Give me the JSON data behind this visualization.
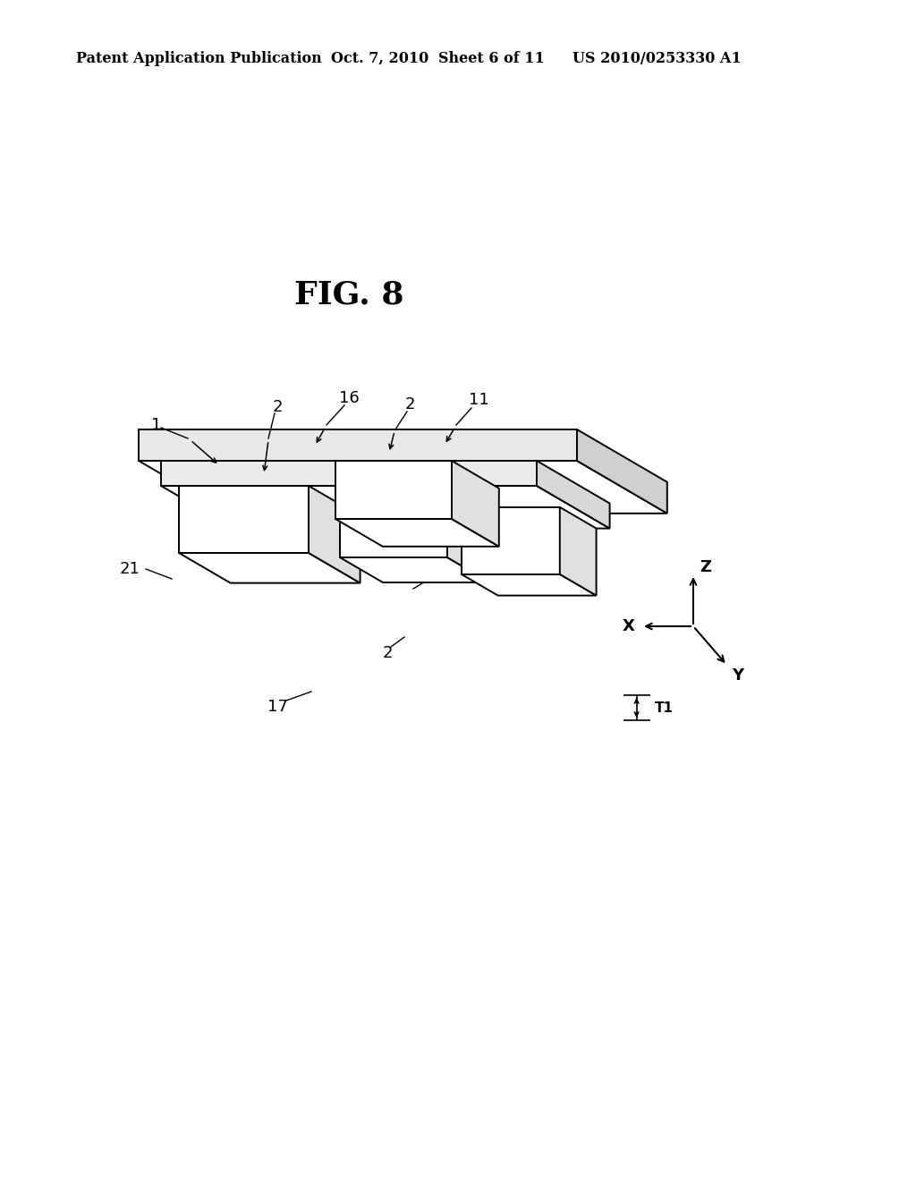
{
  "bg_color": "#ffffff",
  "line_color": "#000000",
  "fig_label": "FIG. 8",
  "fig_label_fontsize": 26,
  "header_text": "Patent Application Publication",
  "header_date": "Oct. 7, 2010",
  "header_sheet": "Sheet 6 of 11",
  "header_patent": "US 2010/0253330 A1",
  "header_fontsize": 11.5,
  "lw": 1.4
}
